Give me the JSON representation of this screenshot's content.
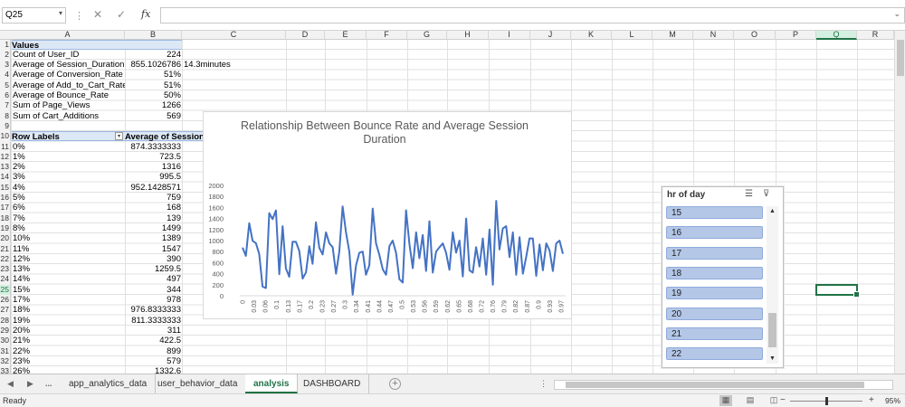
{
  "formula_bar": {
    "name_box": "Q25",
    "cancel_icon": "✕",
    "enter_icon": "✓",
    "fx_label": "fx",
    "formula": ""
  },
  "columns": [
    "A",
    "B",
    "C",
    "D",
    "E",
    "F",
    "G",
    "H",
    "I",
    "J",
    "K",
    "L",
    "M",
    "N",
    "O",
    "P",
    "Q",
    "R"
  ],
  "selected_column": "Q",
  "rows": [
    "1",
    "2",
    "3",
    "4",
    "5",
    "6",
    "7",
    "8",
    "9",
    "10",
    "11",
    "12",
    "13",
    "14",
    "15",
    "16",
    "17",
    "18",
    "19",
    "20",
    "21",
    "22",
    "23",
    "24",
    "25",
    "26",
    "27",
    "28",
    "29",
    "30",
    "31",
    "32",
    "33"
  ],
  "selected_row": "25",
  "values_block": {
    "header": "Values",
    "rows": [
      {
        "label": "Count of User_ID",
        "value": "224",
        "extra": ""
      },
      {
        "label": "Average of Session_Duration",
        "value": "855.1026786",
        "extra": "14.3minutes"
      },
      {
        "label": "Average of Conversion_Rate",
        "value": "51%",
        "extra": ""
      },
      {
        "label": "Average of Add_to_Cart_Rate",
        "value": "51%",
        "extra": ""
      },
      {
        "label": "Average of Bounce_Rate",
        "value": "50%",
        "extra": ""
      },
      {
        "label": "Sum of Page_Views",
        "value": "1266",
        "extra": ""
      },
      {
        "label": "Sum of Cart_Additions",
        "value": "569",
        "extra": ""
      }
    ]
  },
  "pivot": {
    "row_labels_header": "Row Labels",
    "filter_icon": "▾",
    "value_header": "Average of Session_Duration",
    "rows": [
      {
        "label": "0%",
        "value": "874.3333333"
      },
      {
        "label": "1%",
        "value": "723.5"
      },
      {
        "label": "2%",
        "value": "1316"
      },
      {
        "label": "3%",
        "value": "995.5"
      },
      {
        "label": "4%",
        "value": "952.1428571"
      },
      {
        "label": "5%",
        "value": "759"
      },
      {
        "label": "6%",
        "value": "168"
      },
      {
        "label": "7%",
        "value": "139"
      },
      {
        "label": "8%",
        "value": "1499"
      },
      {
        "label": "10%",
        "value": "1389"
      },
      {
        "label": "11%",
        "value": "1547"
      },
      {
        "label": "12%",
        "value": "390"
      },
      {
        "label": "13%",
        "value": "1259.5"
      },
      {
        "label": "14%",
        "value": "497"
      },
      {
        "label": "15%",
        "value": "344"
      },
      {
        "label": "17%",
        "value": "978"
      },
      {
        "label": "18%",
        "value": "976.8333333"
      },
      {
        "label": "19%",
        "value": "811.3333333"
      },
      {
        "label": "20%",
        "value": "311"
      },
      {
        "label": "21%",
        "value": "422.5"
      },
      {
        "label": "22%",
        "value": "899"
      },
      {
        "label": "23%",
        "value": "579"
      },
      {
        "label": "26%",
        "value": "1332.6"
      }
    ]
  },
  "chart_data": {
    "type": "line",
    "title": "Relationship Between Bounce Rate and Average Session Duration",
    "xlabel": "",
    "ylabel": "",
    "ylim": [
      0,
      2000
    ],
    "y_ticks": [
      "0",
      "200",
      "400",
      "600",
      "800",
      "1000",
      "1200",
      "1400",
      "1600",
      "1800",
      "2000"
    ],
    "x_tick_labels": [
      "0",
      "0.03",
      "0.06",
      "0.1",
      "0.13",
      "0.17",
      "0.2",
      "0.23",
      "0.27",
      "0.3",
      "0.34",
      "0.41",
      "0.44",
      "0.47",
      "0.5",
      "0.53",
      "0.56",
      "0.59",
      "0.62",
      "0.65",
      "0.68",
      "0.72",
      "0.76",
      "0.79",
      "0.82",
      "0.87",
      "0.9",
      "0.93",
      "0.97"
    ],
    "grid": false,
    "color": "#4472c4",
    "series": [
      {
        "values": [
          874,
          723,
          1316,
          996,
          952,
          759,
          168,
          139,
          1499,
          1389,
          1547,
          390,
          1260,
          497,
          344,
          978,
          977,
          811,
          311,
          423,
          899,
          579,
          1333,
          870,
          750,
          1150,
          950,
          880,
          400,
          800,
          1620,
          1150,
          800,
          20,
          550,
          780,
          800,
          380,
          550,
          1580,
          950,
          740,
          480,
          380,
          900,
          1000,
          780,
          300,
          240,
          1550,
          940,
          500,
          1150,
          680,
          1100,
          450,
          1350,
          420,
          800,
          880,
          950,
          780,
          470,
          1150,
          780,
          1000,
          350,
          1400,
          460,
          420,
          880,
          530,
          1040,
          380,
          1200,
          200,
          1720,
          840,
          1220,
          1260,
          700,
          1150,
          380,
          1060,
          400,
          700,
          1040,
          1040,
          360,
          930,
          460,
          950,
          820,
          450,
          950,
          1000,
          760
        ]
      }
    ]
  },
  "slicer": {
    "title": "hr of day",
    "multiselect_icon": "☰",
    "clear_filter_icon": "⊽",
    "items": [
      "15",
      "16",
      "17",
      "18",
      "19",
      "20",
      "21",
      "22"
    ],
    "scroll_up": "▲",
    "scroll_down": "▼"
  },
  "tabs": {
    "nav_prev": "◀",
    "nav_next": "▶",
    "more": "...",
    "sheets": [
      "app_analytics_data",
      "user_behavior_data",
      "analysis",
      "DASHBOARD"
    ],
    "active": "analysis",
    "add_icon": "+"
  },
  "statusbar": {
    "ready": "Ready",
    "zoom_minus": "−",
    "zoom_plus": "+",
    "zoom": "95%",
    "zoom_fraction": 0.5
  }
}
